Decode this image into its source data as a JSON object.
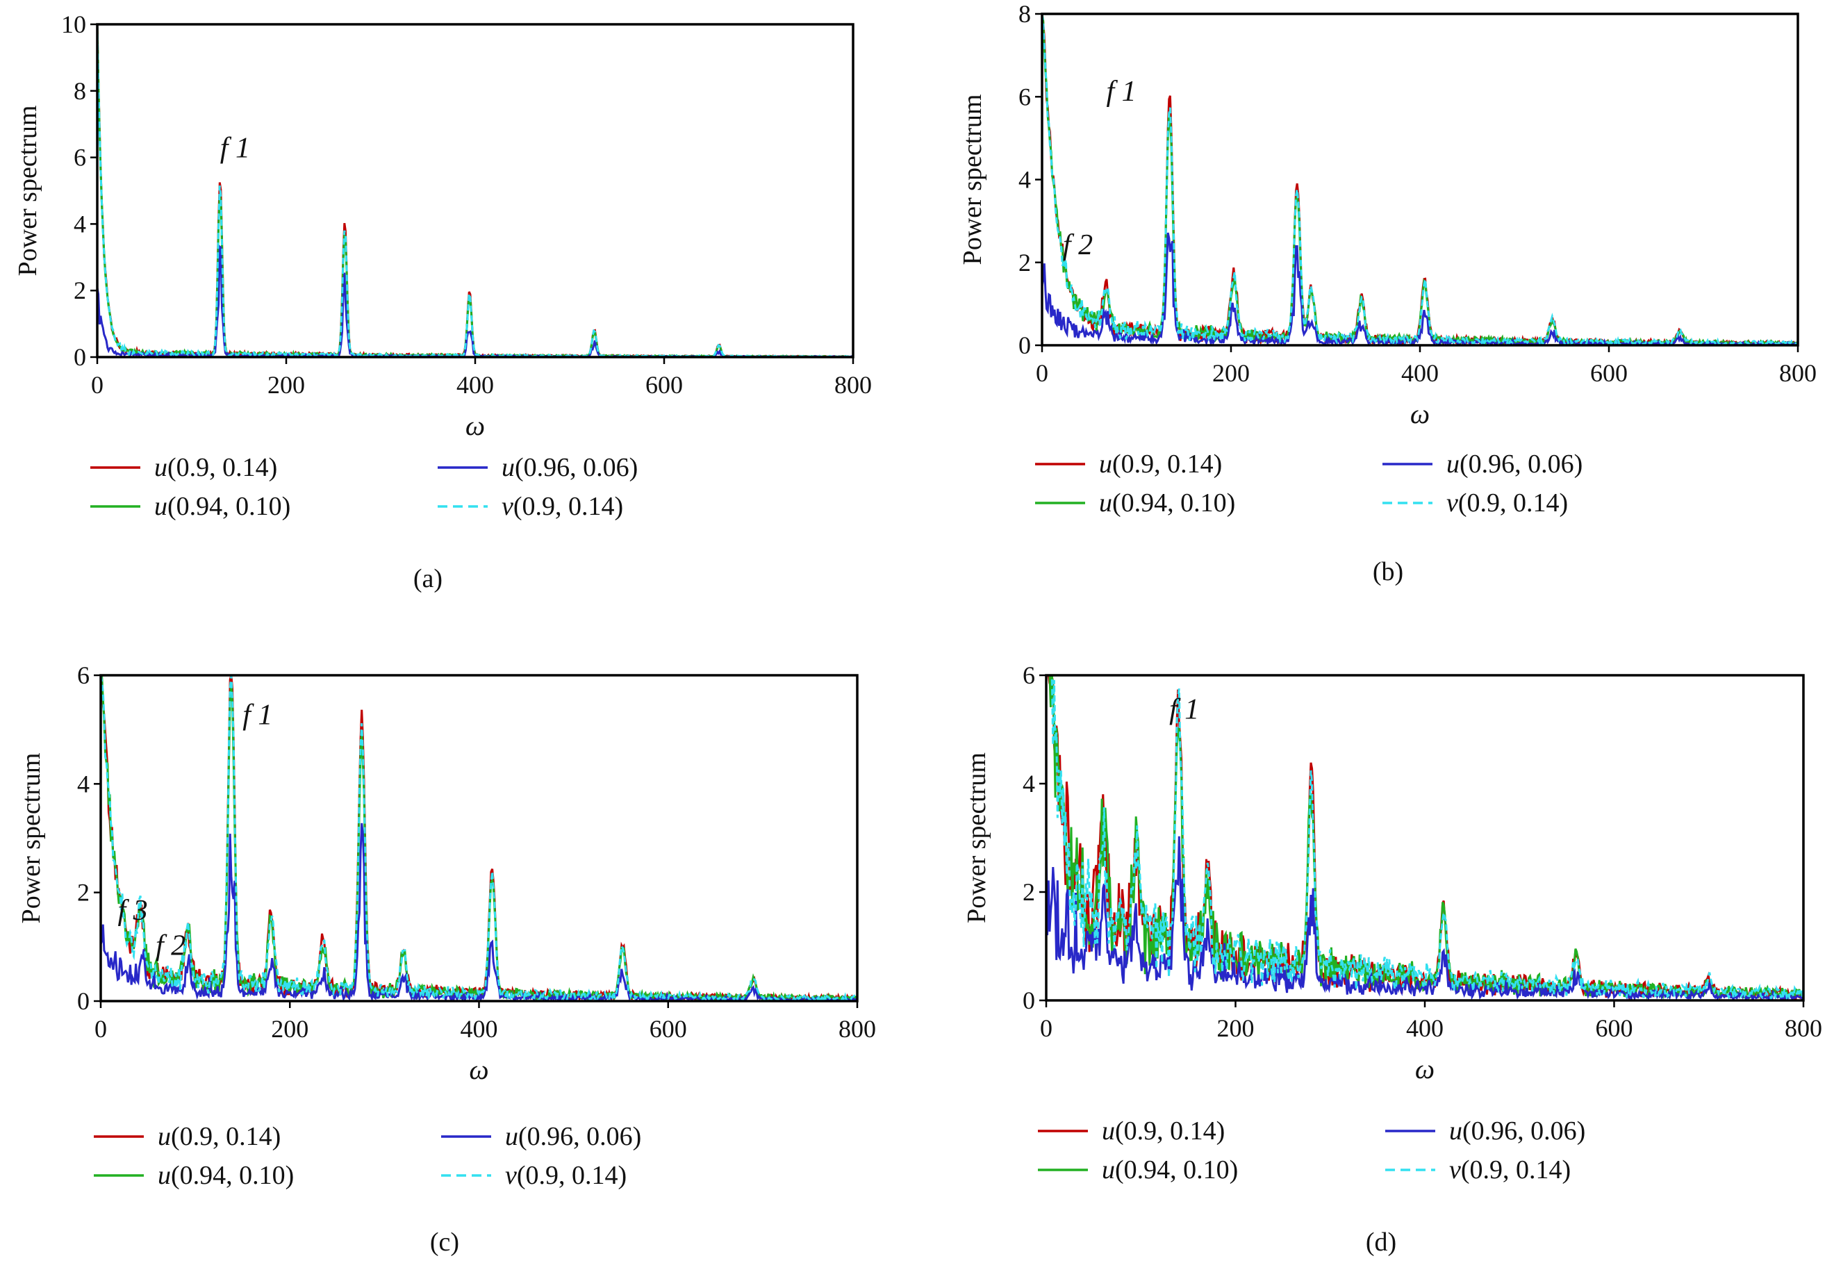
{
  "legend_colors": {
    "u(0.9, 0.14)": "#c00000",
    "u(0.94, 0.10)": "#22b022",
    "u(0.96, 0.06)": "#2828c8",
    "v(0.9, 0.14)": "#33e0f0"
  },
  "chart_data": [
    {
      "panel": "(a)",
      "type": "line",
      "xlabel": "ω",
      "ylabel": "Power spectrum",
      "xlim": [
        0,
        800
      ],
      "ylim": [
        0,
        10
      ],
      "xticks": [
        0,
        200,
        400,
        600,
        800
      ],
      "yticks": [
        0,
        2,
        4,
        6,
        8,
        10
      ],
      "annotations": [
        {
          "text": "f 1",
          "x": 130,
          "y": 6
        }
      ],
      "peaks": [
        [
          130,
          5.3
        ],
        [
          262,
          4.0
        ],
        [
          394,
          1.95
        ],
        [
          526,
          0.8
        ],
        [
          658,
          0.35
        ]
      ],
      "series": [
        {
          "name": "u(0.9, 0.14)",
          "legend_it": "u",
          "legend_rest": "(0.9, 0.14)",
          "style": "solid"
        },
        {
          "name": "u(0.94, 0.10)",
          "legend_it": "u",
          "legend_rest": "(0.94, 0.10)",
          "style": "solid"
        },
        {
          "name": "u(0.96, 0.06)",
          "legend_it": "u",
          "legend_rest": "(0.96, 0.06)",
          "style": "solid"
        },
        {
          "name": "v(0.9, 0.14)",
          "legend_it": "v",
          "legend_rest": "(0.9, 0.14)",
          "style": "dashed"
        }
      ]
    },
    {
      "panel": "(b)",
      "type": "line",
      "xlabel": "ω",
      "ylabel": "Power spectrum",
      "xlim": [
        0,
        800
      ],
      "ylim": [
        0,
        8
      ],
      "xticks": [
        0,
        200,
        400,
        600,
        800
      ],
      "yticks": [
        0,
        2,
        4,
        6,
        8
      ],
      "annotations": [
        {
          "text": "f 1",
          "x": 68,
          "y": 5.9
        },
        {
          "text": "f 2",
          "x": 22,
          "y": 2.2
        }
      ],
      "peaks": [
        [
          135,
          5.7
        ],
        [
          270,
          3.75
        ],
        [
          405,
          1.45
        ],
        [
          540,
          0.55
        ],
        [
          675,
          0.3
        ],
        [
          68,
          1.0
        ],
        [
          203,
          1.5
        ],
        [
          338,
          1.0
        ],
        [
          285,
          1.2
        ]
      ],
      "series": [
        {
          "name": "u(0.9, 0.14)",
          "legend_it": "u",
          "legend_rest": "(0.9, 0.14)",
          "style": "solid"
        },
        {
          "name": "u(0.94, 0.10)",
          "legend_it": "u",
          "legend_rest": "(0.94, 0.10)",
          "style": "solid"
        },
        {
          "name": "u(0.96, 0.06)",
          "legend_it": "u",
          "legend_rest": "(0.96, 0.06)",
          "style": "solid"
        },
        {
          "name": "v(0.9, 0.14)",
          "legend_it": "v",
          "legend_rest": "(0.9, 0.14)",
          "style": "dashed"
        }
      ]
    },
    {
      "panel": "(c)",
      "type": "line",
      "xlabel": "ω",
      "ylabel": "Power spectrum",
      "xlim": [
        0,
        800
      ],
      "ylim": [
        0,
        6
      ],
      "xticks": [
        0,
        200,
        400,
        600,
        800
      ],
      "yticks": [
        0,
        2,
        4,
        6
      ],
      "annotations": [
        {
          "text": "f 1",
          "x": 150,
          "y": 5.1
        },
        {
          "text": "f 3",
          "x": 18,
          "y": 1.5
        },
        {
          "text": "f 2",
          "x": 58,
          "y": 0.85
        }
      ],
      "peaks": [
        [
          138,
          6.0
        ],
        [
          276,
          5.0
        ],
        [
          414,
          2.3
        ],
        [
          552,
          0.95
        ],
        [
          690,
          0.35
        ],
        [
          42,
          1.0
        ],
        [
          92,
          0.95
        ],
        [
          180,
          1.35
        ],
        [
          235,
          0.9
        ],
        [
          320,
          0.8
        ]
      ],
      "series": [
        {
          "name": "u(0.9, 0.14)",
          "legend_it": "u",
          "legend_rest": "(0.9, 0.14)",
          "style": "solid"
        },
        {
          "name": "u(0.94, 0.10)",
          "legend_it": "u",
          "legend_rest": "(0.94, 0.10)",
          "style": "solid"
        },
        {
          "name": "u(0.96, 0.06)",
          "legend_it": "u",
          "legend_rest": "(0.96, 0.06)",
          "style": "solid"
        },
        {
          "name": "v(0.9, 0.14)",
          "legend_it": "v",
          "legend_rest": "(0.9, 0.14)",
          "style": "dashed"
        }
      ]
    },
    {
      "panel": "(d)",
      "type": "line",
      "xlabel": "ω",
      "ylabel": "Power spectrum",
      "xlim": [
        0,
        800
      ],
      "ylim": [
        0,
        6
      ],
      "xticks": [
        0,
        200,
        400,
        600,
        800
      ],
      "yticks": [
        0,
        2,
        4,
        6
      ],
      "annotations": [
        {
          "text": "f 1",
          "x": 130,
          "y": 5.2
        }
      ],
      "peaks": [
        [
          140,
          4.6
        ],
        [
          280,
          3.5
        ],
        [
          420,
          1.4
        ],
        [
          560,
          0.6
        ],
        [
          700,
          0.25
        ],
        [
          95,
          1.7
        ],
        [
          170,
          1.5
        ],
        [
          60,
          1.8
        ]
      ],
      "series": [
        {
          "name": "u(0.9, 0.14)",
          "legend_it": "u",
          "legend_rest": "(0.9, 0.14)",
          "style": "solid"
        },
        {
          "name": "u(0.94, 0.10)",
          "legend_it": "u",
          "legend_rest": "(0.94, 0.10)",
          "style": "solid"
        },
        {
          "name": "u(0.96, 0.06)",
          "legend_it": "u",
          "legend_rest": "(0.96, 0.06)",
          "style": "solid"
        },
        {
          "name": "v(0.9, 0.14)",
          "legend_it": "v",
          "legend_rest": "(0.9, 0.14)",
          "style": "dashed"
        }
      ]
    }
  ]
}
